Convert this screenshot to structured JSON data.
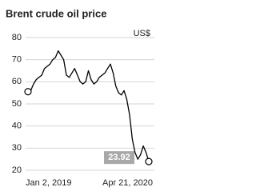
{
  "chart_data": {
    "type": "line",
    "title": "Brent crude oil price",
    "ylabel": "US$",
    "categories": [
      "Jan 2, 2019",
      null,
      null,
      null,
      null,
      null,
      null,
      null,
      null,
      null,
      null,
      null,
      null,
      null,
      null,
      null,
      null,
      null,
      null,
      null,
      null,
      null,
      null,
      null,
      null,
      null,
      null,
      null,
      null,
      null,
      null,
      null,
      null,
      null,
      null,
      null,
      null,
      null,
      null,
      null,
      null,
      null,
      null,
      null,
      "Apr 21, 2020"
    ],
    "values": [
      55.5,
      56,
      59,
      61,
      62,
      63,
      66,
      67,
      68,
      70,
      71,
      74,
      72,
      70,
      63,
      62,
      64,
      66,
      63,
      60,
      59,
      60,
      65,
      61,
      59,
      60,
      62,
      63,
      64,
      66,
      68,
      64,
      58,
      55,
      54,
      56,
      52,
      45,
      34,
      28,
      25,
      27,
      31,
      28,
      23.92
    ],
    "color": "#000000",
    "ylim": [
      20,
      80
    ],
    "yticks": [
      20,
      30,
      40,
      50,
      60,
      70,
      80
    ],
    "grid": true
  }
}
